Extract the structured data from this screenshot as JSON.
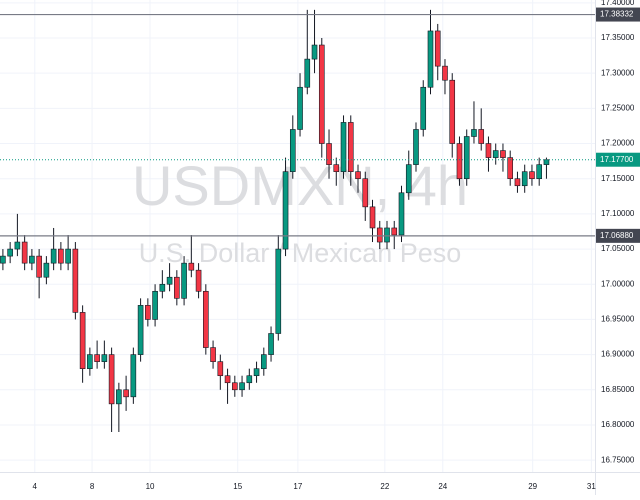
{
  "chart_data": {
    "type": "candlestick",
    "title": "USDMXN, 4h",
    "subtitle": "U.S. Dollar / Mexican Peso",
    "open": [
      17.03,
      17.04,
      17.05,
      17.06,
      17.03,
      17.04,
      17.01,
      17.03,
      17.05,
      17.03,
      17.05,
      16.96,
      16.88,
      16.9,
      16.89,
      16.9,
      16.83,
      16.85,
      16.84,
      16.9,
      16.97,
      16.95,
      16.99,
      17.0,
      17.01,
      16.98,
      17.03,
      17.02,
      16.99,
      16.91,
      16.89,
      16.87,
      16.86,
      16.85,
      16.86,
      16.87,
      16.88,
      16.9,
      16.93,
      17.05,
      17.16,
      17.22,
      17.28,
      17.32,
      17.34,
      17.2,
      17.17,
      17.16,
      17.23,
      17.16,
      17.15,
      17.11,
      17.08,
      17.06,
      17.08,
      17.07,
      17.13,
      17.17,
      17.22,
      17.28,
      17.36,
      17.31,
      17.29,
      17.2,
      17.15,
      17.21,
      17.22,
      17.2,
      17.18,
      17.19,
      17.18,
      17.15,
      17.14,
      17.16,
      17.15,
      17.17
    ],
    "high": [
      17.05,
      17.06,
      17.1,
      17.07,
      17.05,
      17.05,
      17.04,
      17.08,
      17.06,
      17.07,
      17.06,
      16.97,
      16.91,
      16.92,
      16.92,
      16.91,
      16.86,
      16.87,
      16.91,
      16.98,
      16.98,
      17.0,
      17.02,
      17.03,
      17.02,
      17.04,
      17.07,
      17.03,
      17.0,
      16.92,
      16.9,
      16.88,
      16.87,
      16.87,
      16.88,
      16.89,
      16.91,
      16.94,
      17.07,
      17.18,
      17.24,
      17.3,
      17.39,
      17.39,
      17.35,
      17.22,
      17.18,
      17.24,
      17.24,
      17.17,
      17.16,
      17.12,
      17.09,
      17.09,
      17.09,
      17.14,
      17.19,
      17.23,
      17.29,
      17.39,
      17.37,
      17.32,
      17.3,
      17.21,
      17.22,
      17.26,
      17.25,
      17.21,
      17.2,
      17.2,
      17.19,
      17.16,
      17.17,
      17.17,
      17.18,
      17.18
    ],
    "low": [
      17.02,
      17.03,
      17.04,
      17.02,
      17.02,
      16.98,
      17.0,
      17.02,
      17.02,
      17.02,
      16.95,
      16.86,
      16.87,
      16.88,
      16.88,
      16.79,
      16.79,
      16.82,
      16.83,
      16.89,
      16.94,
      16.94,
      16.98,
      16.99,
      16.97,
      16.97,
      17.01,
      16.98,
      16.9,
      16.88,
      16.85,
      16.83,
      16.84,
      16.84,
      16.85,
      16.86,
      16.87,
      16.89,
      16.92,
      17.04,
      17.15,
      17.21,
      17.27,
      17.3,
      17.18,
      17.15,
      17.14,
      17.15,
      17.14,
      17.13,
      17.09,
      17.06,
      17.05,
      17.05,
      17.05,
      17.06,
      17.12,
      17.16,
      17.21,
      17.27,
      17.29,
      17.27,
      17.18,
      17.14,
      17.14,
      17.2,
      17.19,
      17.16,
      17.17,
      17.16,
      17.14,
      17.13,
      17.13,
      17.14,
      17.14,
      17.15
    ],
    "close": [
      17.04,
      17.05,
      17.06,
      17.03,
      17.04,
      17.01,
      17.03,
      17.05,
      17.03,
      17.05,
      16.96,
      16.88,
      16.9,
      16.89,
      16.9,
      16.83,
      16.85,
      16.84,
      16.9,
      16.97,
      16.95,
      16.99,
      17.0,
      17.01,
      16.98,
      17.03,
      17.02,
      16.99,
      16.91,
      16.89,
      16.87,
      16.86,
      16.85,
      16.86,
      16.87,
      16.88,
      16.9,
      16.93,
      17.05,
      17.16,
      17.22,
      17.28,
      17.32,
      17.34,
      17.2,
      17.17,
      17.16,
      17.23,
      17.16,
      17.15,
      17.11,
      17.08,
      17.06,
      17.08,
      17.07,
      17.13,
      17.17,
      17.22,
      17.28,
      17.36,
      17.31,
      17.29,
      17.2,
      17.15,
      17.21,
      17.22,
      17.2,
      17.18,
      17.19,
      17.18,
      17.15,
      17.14,
      17.16,
      17.15,
      17.17,
      17.177
    ],
    "up_color": "#089981",
    "down_color": "#f23645",
    "ylim": [
      16.736,
      17.404
    ],
    "xlim": [
      -0.4,
      81.7
    ],
    "yticks": [
      {
        "value": 16.75,
        "label": "16.75000"
      },
      {
        "value": 16.8,
        "label": "16.80000"
      },
      {
        "value": 16.85,
        "label": "16.85000"
      },
      {
        "value": 16.9,
        "label": "16.90000"
      },
      {
        "value": 16.95,
        "label": "16.95000"
      },
      {
        "value": 17.0,
        "label": "17.00000"
      },
      {
        "value": 17.05,
        "label": "17.05000"
      },
      {
        "value": 17.1,
        "label": "17.10000"
      },
      {
        "value": 17.15,
        "label": "17.15000"
      },
      {
        "value": 17.2,
        "label": "17.20000"
      },
      {
        "value": 17.25,
        "label": "17.25000"
      },
      {
        "value": 17.3,
        "label": "17.30000"
      },
      {
        "value": 17.35,
        "label": "17.35000"
      },
      {
        "value": 17.4,
        "label": "17.40000"
      }
    ],
    "xticks": [
      {
        "value": 4.4,
        "label": "4"
      },
      {
        "value": 12.3,
        "label": "8"
      },
      {
        "value": 20.3,
        "label": "10"
      },
      {
        "value": 32.4,
        "label": "15"
      },
      {
        "value": 40.7,
        "label": "17"
      },
      {
        "value": 52.7,
        "label": "22"
      },
      {
        "value": 60.7,
        "label": "24"
      },
      {
        "value": 73.1,
        "label": "29"
      },
      {
        "value": 81.2,
        "label": "31"
      }
    ],
    "price_lines": [
      {
        "value": 17.38332,
        "label": "17.38332"
      },
      {
        "value": 17.0688,
        "label": "17.06880"
      }
    ],
    "last_price": {
      "value": 17.177,
      "label": "17.17700"
    },
    "grid": true
  }
}
